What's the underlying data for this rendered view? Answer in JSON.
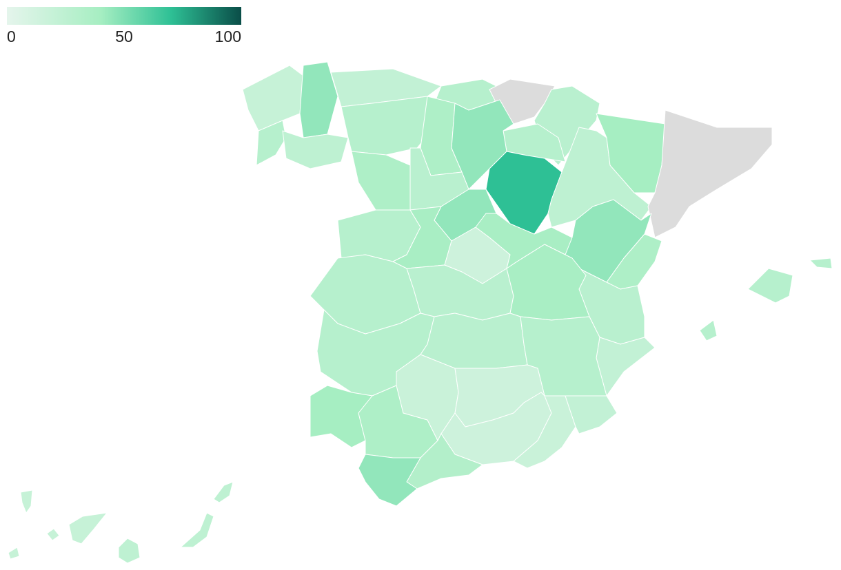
{
  "chart_data": {
    "type": "choropleth",
    "values": [
      20,
      45,
      30,
      25,
      22,
      30,
      null,
      28,
      30,
      30,
      35,
      45,
      35,
      28,
      70,
      45,
      30,
      38,
      15,
      38,
      25,
      40,
      null,
      45,
      35,
      28,
      22,
      30,
      28,
      38,
      30,
      28,
      30,
      40,
      35,
      18,
      15,
      15,
      18,
      22,
      32,
      45,
      30,
      25,
      20
    ],
    "clim": [
      0,
      100
    ],
    "ticks": [
      0,
      50,
      100
    ],
    "colorscale": [
      [
        0,
        "#e5f5ec"
      ],
      [
        40,
        "#a6eec2"
      ],
      [
        70,
        "#2ec095"
      ],
      [
        100,
        "#0a4d48"
      ]
    ],
    "missing_color": "#dcdcdc"
  }
}
